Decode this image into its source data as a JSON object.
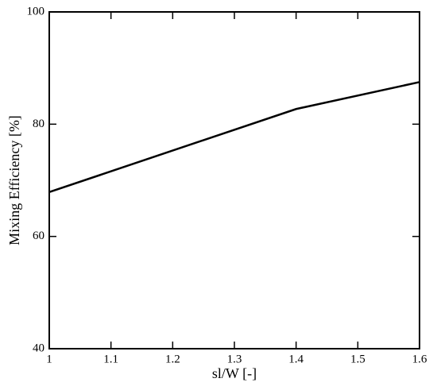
{
  "chart_data": {
    "type": "line",
    "x_label": "sl/W [-]",
    "y_label": "Mixing Efficiency [%]",
    "x": [
      1,
      1.4,
      1.6
    ],
    "series": [
      {
        "color": "#000000",
        "values": [
          67.9,
          82.7,
          87.5
        ]
      }
    ],
    "xlim": [
      1,
      1.6
    ],
    "xticks": [
      1,
      1.1,
      1.2,
      1.3,
      1.4,
      1.5,
      1.6
    ],
    "ylim": [
      40,
      100
    ],
    "yticks": [
      40,
      60,
      80,
      100
    ]
  }
}
